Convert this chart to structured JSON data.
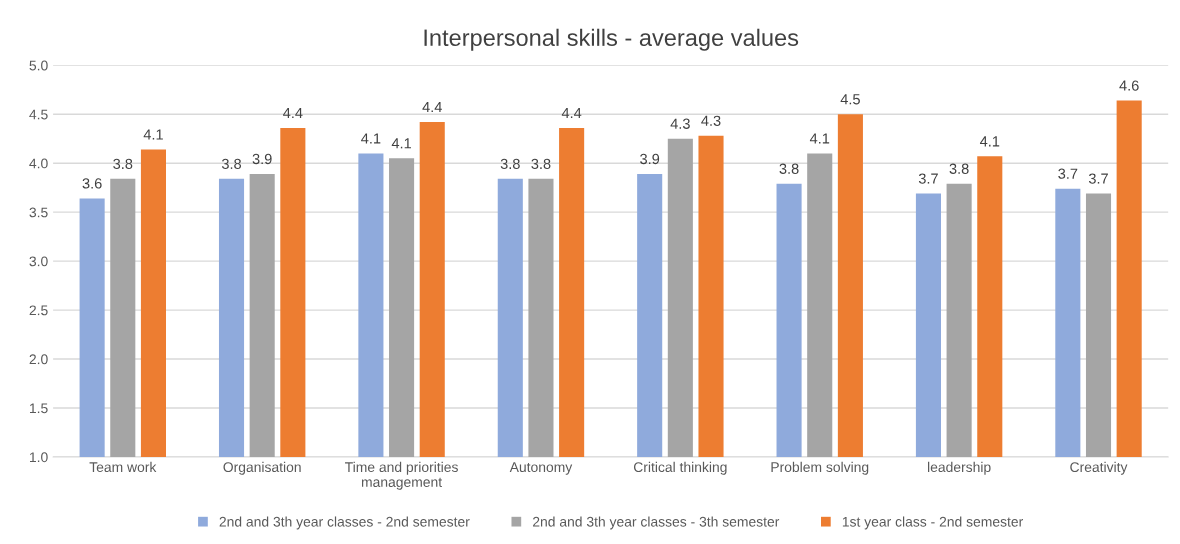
{
  "chart_data": {
    "type": "bar",
    "title": "Interpersonal skills - average values",
    "categories": [
      "Team work",
      "Organisation",
      "Time and priorities\nmanagement",
      "Autonomy",
      "Critical thinking",
      "Problem solving",
      "leadership",
      "Creativity"
    ],
    "series": [
      {
        "name": "2nd and 3th year classes - 2nd semester",
        "color": "#8faadc",
        "values": [
          3.64,
          3.84,
          4.1,
          3.84,
          3.89,
          3.79,
          3.69,
          3.74
        ],
        "value_labels": [
          "3.6",
          "3.8",
          "4.1",
          "3.8",
          "3.9",
          "3.8",
          "3.7",
          "3.7"
        ]
      },
      {
        "name": "2nd and 3th year classes - 3th semester",
        "color": "#a5a5a5",
        "values": [
          3.84,
          3.89,
          4.05,
          3.84,
          4.25,
          4.1,
          3.79,
          3.69
        ],
        "value_labels": [
          "3.8",
          "3.9",
          "4.1",
          "3.8",
          "4.3",
          "4.1",
          "3.8",
          "3.7"
        ]
      },
      {
        "name": "1st year class - 2nd semester",
        "color": "#ed7d31",
        "values": [
          4.14,
          4.36,
          4.42,
          4.36,
          4.28,
          4.5,
          4.07,
          4.64
        ],
        "value_labels": [
          "4.1",
          "4.4",
          "4.4",
          "4.4",
          "4.3",
          "4.5",
          "4.1",
          "4.6"
        ]
      }
    ],
    "ylim": [
      1.0,
      5.0
    ],
    "yticks": [
      {
        "value": 1.0,
        "label": "1.0"
      },
      {
        "value": 1.5,
        "label": "1.5"
      },
      {
        "value": 2.0,
        "label": "2.0"
      },
      {
        "value": 2.5,
        "label": "2.5"
      },
      {
        "value": 3.0,
        "label": "3.0"
      },
      {
        "value": 3.5,
        "label": "3.5"
      },
      {
        "value": 4.0,
        "label": "4.0"
      },
      {
        "value": 4.5,
        "label": "4.5"
      },
      {
        "value": 5.0,
        "label": "5.0"
      }
    ],
    "grid": "y",
    "legend": "bottom"
  }
}
